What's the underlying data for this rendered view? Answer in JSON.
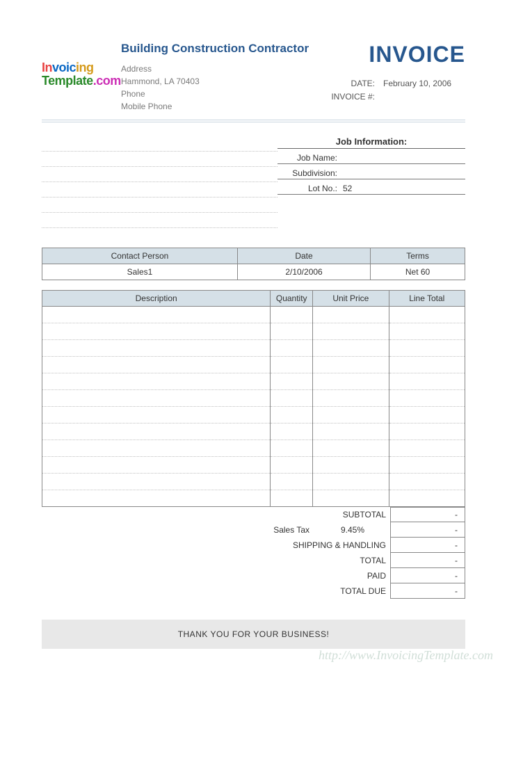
{
  "logo": {
    "line1a": "In",
    "line1b": "voic",
    "line1c": "ing",
    "line2a": "Template",
    "line2b": ".com"
  },
  "company": {
    "name": "Building Construction Contractor",
    "address_label": "Address",
    "city_line": "Hammond, LA  70403",
    "phone_label": "Phone",
    "mobile_label": "Mobile Phone"
  },
  "header": {
    "invoice_title": "INVOICE",
    "date_label": "DATE:",
    "date_value": "February 10, 2006",
    "invoice_num_label": "INVOICE #:",
    "invoice_num_value": ""
  },
  "job": {
    "title": "Job Information:",
    "name_label": "Job Name:",
    "name_value": "",
    "subdivision_label": "Subdivision:",
    "subdivision_value": "",
    "lot_label": "Lot No.:",
    "lot_value": "52"
  },
  "info_table": {
    "headers": [
      "Contact Person",
      "Date",
      "Terms"
    ],
    "row": [
      "Sales1",
      "2/10/2006",
      "Net 60"
    ]
  },
  "items_table": {
    "headers": [
      "Description",
      "Quantity",
      "Unit Price",
      "Line Total"
    ],
    "row_count": 12
  },
  "totals": {
    "subtotal_label": "SUBTOTAL",
    "subtotal_value": "-",
    "tax_prelabel": "Sales Tax",
    "tax_rate": "9.45%",
    "tax_value": "-",
    "shipping_label": "SHIPPING & HANDLING",
    "shipping_value": "-",
    "total_label": "TOTAL",
    "total_value": "-",
    "paid_label": "PAID",
    "paid_value": "-",
    "due_label": "TOTAL DUE",
    "due_value": "-"
  },
  "footer": {
    "thanks": "THANK YOU FOR YOUR BUSINESS!",
    "watermark": "http://www.InvoicingTemplate.com"
  },
  "colors": {
    "brand": "#27578e",
    "header_bg": "#d5e0e7",
    "border": "#888888"
  }
}
